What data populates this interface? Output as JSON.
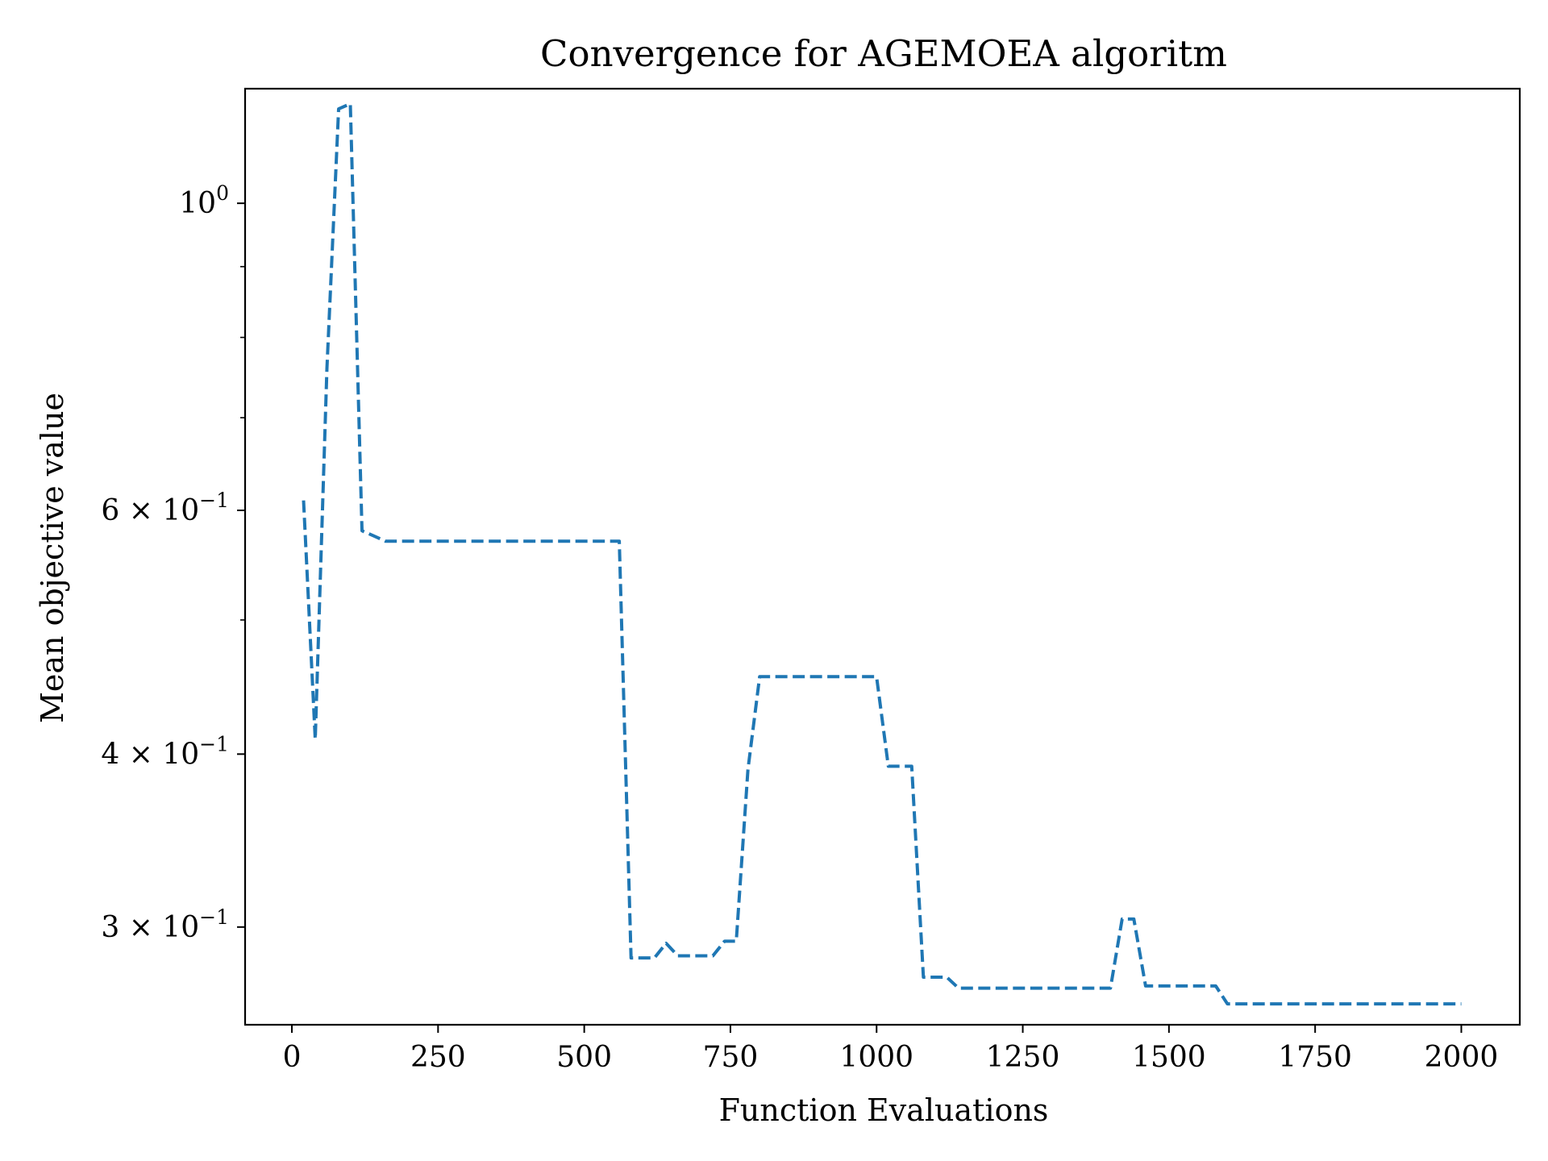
{
  "chart_data": {
    "type": "line",
    "title": "Convergence for AGEMOEA algoritm",
    "xlabel": "Function Evaluations",
    "ylabel": "Mean objective value",
    "xlim": [
      -80,
      2100
    ],
    "ylim": [
      0.255,
      1.21
    ],
    "yscale": "log",
    "grid": false,
    "line_color": "#1f77b4",
    "line_style": "dashed",
    "x_ticks": [
      0,
      250,
      500,
      750,
      1000,
      1250,
      1500,
      1750,
      2000
    ],
    "x_tick_labels": [
      "0",
      "250",
      "500",
      "750",
      "1000",
      "1250",
      "1500",
      "1750",
      "2000"
    ],
    "y_major_ticks": [
      {
        "value": 1.0,
        "base": "10",
        "exp": "0",
        "mult": ""
      },
      {
        "value": 0.6,
        "base": "10",
        "exp": "−1",
        "mult": "6 × "
      },
      {
        "value": 0.4,
        "base": "10",
        "exp": "−1",
        "mult": "4 × "
      },
      {
        "value": 0.3,
        "base": "10",
        "exp": "−1",
        "mult": "3 × "
      }
    ],
    "y_minor_ticks": [
      0.5,
      0.7,
      0.8,
      0.9
    ],
    "series": [
      {
        "x": [
          20,
          40,
          60,
          80,
          100,
          120,
          140,
          160,
          180,
          200,
          220,
          240,
          260,
          280,
          300,
          320,
          340,
          360,
          380,
          400,
          420,
          440,
          460,
          480,
          500,
          520,
          540,
          560,
          580,
          600,
          620,
          640,
          660,
          680,
          700,
          720,
          740,
          760,
          780,
          800,
          820,
          840,
          860,
          880,
          900,
          920,
          940,
          960,
          980,
          1000,
          1020,
          1040,
          1060,
          1080,
          1100,
          1120,
          1140,
          1160,
          1180,
          1200,
          1220,
          1240,
          1260,
          1280,
          1300,
          1320,
          1340,
          1360,
          1380,
          1400,
          1420,
          1440,
          1460,
          1480,
          1500,
          1520,
          1540,
          1560,
          1580,
          1600,
          1620,
          1640,
          1660,
          1680,
          1700,
          1720,
          1740,
          1760,
          1780,
          1800,
          1820,
          1840,
          1860,
          1880,
          1900,
          1920,
          1940,
          1960,
          1980,
          2000
        ],
        "y": [
          0.61,
          0.41,
          0.76,
          1.17,
          1.18,
          0.58,
          0.575,
          0.57,
          0.57,
          0.57,
          0.57,
          0.57,
          0.57,
          0.57,
          0.57,
          0.57,
          0.57,
          0.57,
          0.57,
          0.57,
          0.57,
          0.57,
          0.57,
          0.57,
          0.57,
          0.57,
          0.57,
          0.57,
          0.285,
          0.285,
          0.285,
          0.292,
          0.286,
          0.286,
          0.286,
          0.286,
          0.293,
          0.293,
          0.39,
          0.455,
          0.455,
          0.455,
          0.455,
          0.455,
          0.455,
          0.455,
          0.455,
          0.455,
          0.455,
          0.455,
          0.392,
          0.392,
          0.392,
          0.276,
          0.276,
          0.276,
          0.271,
          0.271,
          0.271,
          0.271,
          0.271,
          0.271,
          0.271,
          0.271,
          0.271,
          0.271,
          0.271,
          0.271,
          0.271,
          0.271,
          0.304,
          0.304,
          0.272,
          0.272,
          0.272,
          0.272,
          0.272,
          0.272,
          0.272,
          0.264,
          0.264,
          0.264,
          0.264,
          0.264,
          0.264,
          0.264,
          0.264,
          0.264,
          0.264,
          0.264,
          0.264,
          0.264,
          0.264,
          0.264,
          0.264,
          0.264,
          0.264,
          0.264,
          0.264,
          0.264
        ]
      }
    ]
  }
}
